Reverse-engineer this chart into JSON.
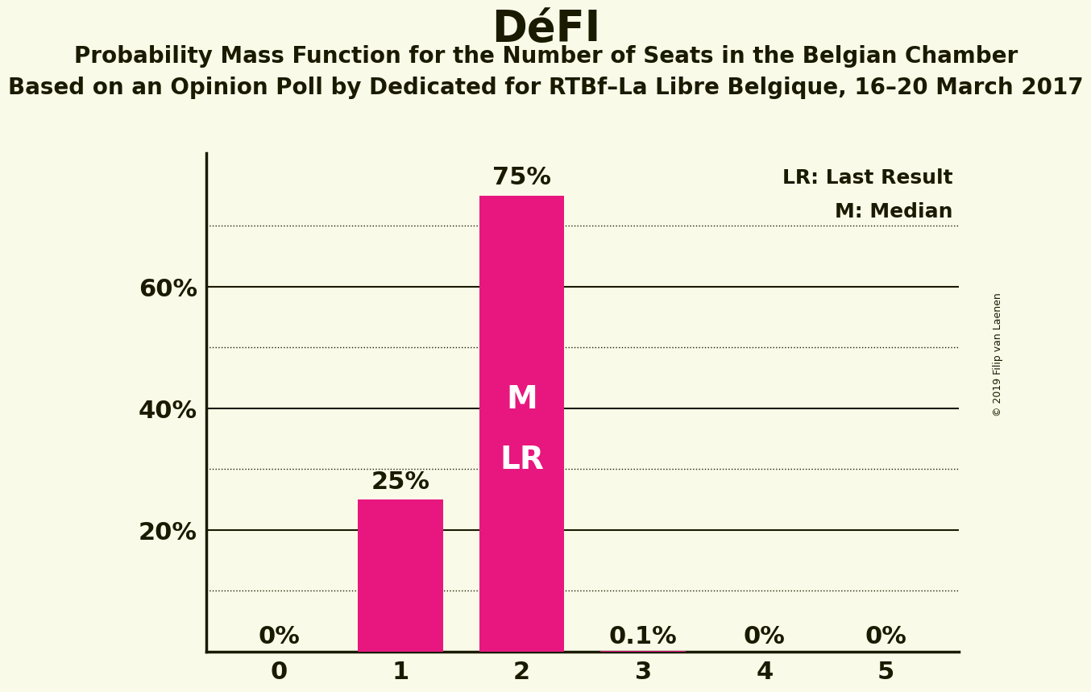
{
  "title": "DéFI",
  "subtitle1": "Probability Mass Function for the Number of Seats in the Belgian Chamber",
  "subtitle2": "Based on an Opinion Poll by Dedicated for RTBf–La Libre Belgique, 16–20 March 2017",
  "copyright": "© 2019 Filip van Laenen",
  "categories": [
    0,
    1,
    2,
    3,
    4,
    5
  ],
  "values": [
    0.0,
    0.25,
    0.75,
    0.001,
    0.0,
    0.0
  ],
  "bar_labels": [
    "0%",
    "25%",
    "75%",
    "0.1%",
    "0%",
    "0%"
  ],
  "bar_color": "#E8177F",
  "background_color": "#FAFAE8",
  "text_color": "#1a1a00",
  "ylabel_ticks": [
    0.0,
    0.2,
    0.4,
    0.6,
    0.8
  ],
  "ylabel_labels": [
    "",
    "20%",
    "40%",
    "60%",
    ""
  ],
  "solid_gridlines": [
    0.2,
    0.4,
    0.6
  ],
  "dotted_gridlines": [
    0.1,
    0.3,
    0.5,
    0.7
  ],
  "ylim": [
    0,
    0.82
  ],
  "median_bar": 2,
  "last_result_bar": 2,
  "legend_lr": "LR: Last Result",
  "legend_m": "M: Median",
  "bar_label_fontsize": 22,
  "axis_tick_fontsize": 22,
  "title_fontsize": 38,
  "subtitle_fontsize": 20
}
